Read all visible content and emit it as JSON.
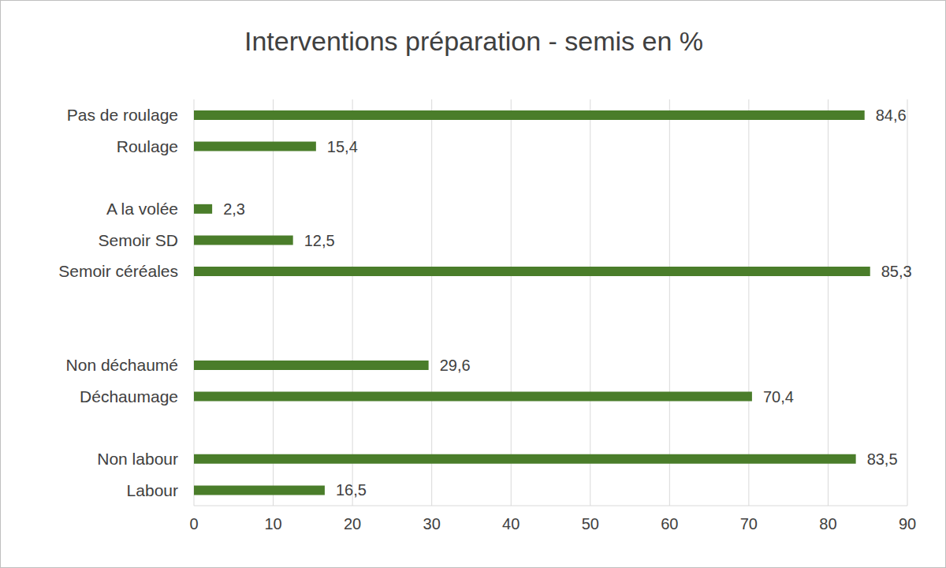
{
  "chart_data": {
    "type": "bar",
    "title": "Interventions préparation - semis en %",
    "orientation": "horizontal",
    "categories": [
      "Pas de roulage",
      "Roulage",
      null,
      "A la volée",
      "Semoir SD",
      "Semoir céréales",
      null,
      null,
      "Non déchaumé",
      "Déchaumage",
      null,
      "Non labour",
      "Labour"
    ],
    "values": [
      84.6,
      15.4,
      null,
      2.3,
      12.5,
      85.3,
      null,
      null,
      29.6,
      70.4,
      null,
      83.5,
      16.5
    ],
    "value_labels": [
      "84,6",
      "15,4",
      null,
      "2,3",
      "12,5",
      "85,3",
      null,
      null,
      "29,6",
      "70,4",
      null,
      "83,5",
      "16,5"
    ],
    "color": "#4a7d2a",
    "xlim": [
      0,
      90
    ],
    "xticks": [
      0,
      10,
      20,
      30,
      40,
      50,
      60,
      70,
      80,
      90
    ],
    "grid": true,
    "data_labels": true
  }
}
